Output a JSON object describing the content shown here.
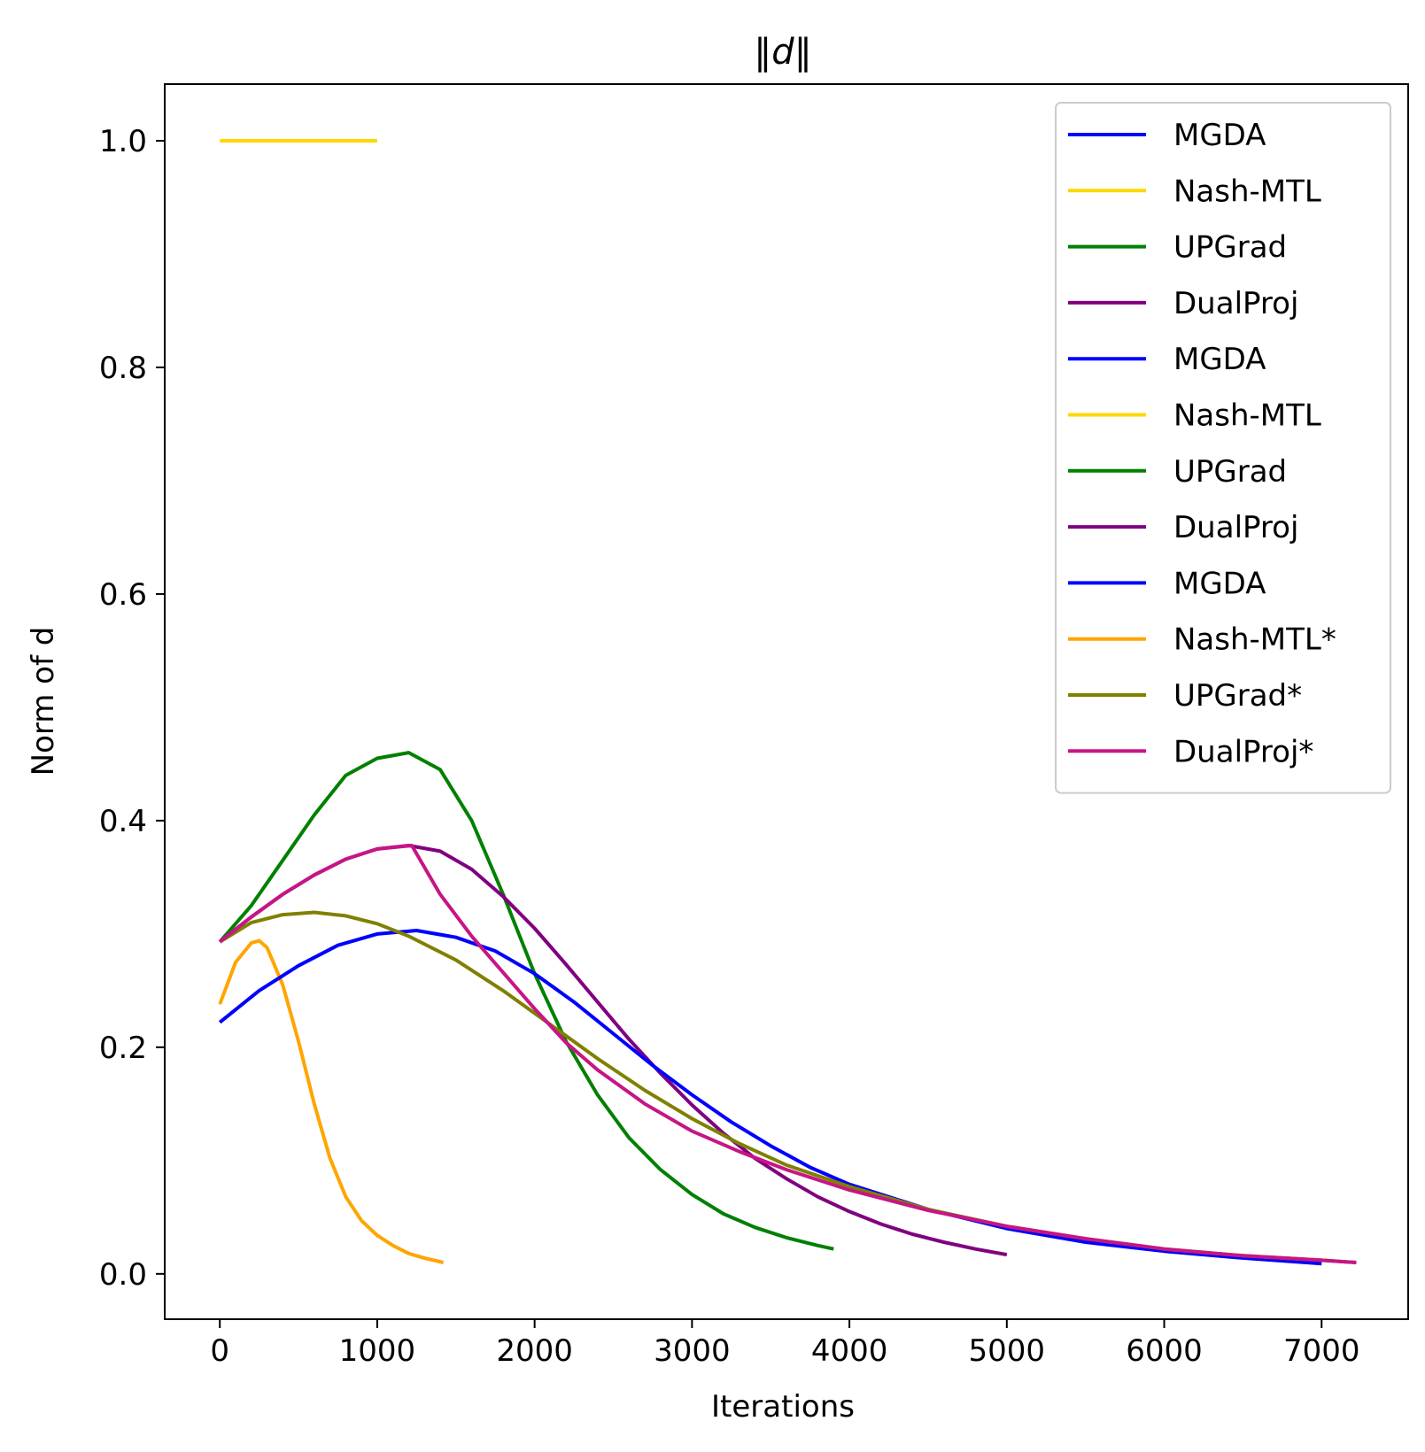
{
  "chart_data": {
    "type": "line",
    "title": "‖d‖",
    "xlabel": "Iterations",
    "ylabel": "Norm of d",
    "xlim": [
      -350,
      7550
    ],
    "ylim": [
      -0.04,
      1.05
    ],
    "xticks": [
      0,
      1000,
      2000,
      3000,
      4000,
      5000,
      6000,
      7000
    ],
    "yticks": [
      0.0,
      0.2,
      0.4,
      0.6,
      0.8,
      1.0
    ],
    "xtick_labels": [
      "0",
      "1000",
      "2000",
      "3000",
      "4000",
      "5000",
      "6000",
      "7000"
    ],
    "ytick_labels": [
      "0.0",
      "0.2",
      "0.4",
      "0.6",
      "0.8",
      "1.0"
    ],
    "grid": false,
    "legend_position": "top-right",
    "legend": [
      {
        "label": "MGDA",
        "color": "#0000ff"
      },
      {
        "label": "Nash-MTL",
        "color": "#ffd700"
      },
      {
        "label": "UPGrad",
        "color": "#008000"
      },
      {
        "label": "DualProj",
        "color": "#800080"
      },
      {
        "label": "MGDA",
        "color": "#0000ff"
      },
      {
        "label": "Nash-MTL",
        "color": "#ffd700"
      },
      {
        "label": "UPGrad",
        "color": "#008000"
      },
      {
        "label": "DualProj",
        "color": "#800080"
      },
      {
        "label": "MGDA",
        "color": "#0000ff"
      },
      {
        "label": "Nash-MTL*",
        "color": "#ffa500"
      },
      {
        "label": "UPGrad*",
        "color": "#808000"
      },
      {
        "label": "DualProj*",
        "color": "#c71585"
      }
    ],
    "series": [
      {
        "name": "Nash-MTL",
        "color": "#ffd700",
        "x": [
          0,
          1000
        ],
        "y": [
          1.0,
          1.0
        ]
      },
      {
        "name": "Nash-MTL*",
        "color": "#ffa500",
        "x": [
          0,
          100,
          200,
          250,
          300,
          400,
          500,
          600,
          700,
          800,
          900,
          1000,
          1100,
          1200,
          1300,
          1420
        ],
        "y": [
          0.238,
          0.275,
          0.292,
          0.294,
          0.288,
          0.255,
          0.205,
          0.15,
          0.102,
          0.068,
          0.047,
          0.034,
          0.025,
          0.018,
          0.014,
          0.01
        ]
      },
      {
        "name": "UPGrad",
        "color": "#008000",
        "x": [
          0,
          200,
          400,
          600,
          800,
          1000,
          1200,
          1400,
          1600,
          1800,
          2000,
          2200,
          2400,
          2600,
          2800,
          3000,
          3200,
          3400,
          3600,
          3800,
          3900
        ],
        "y": [
          0.293,
          0.325,
          0.365,
          0.405,
          0.44,
          0.455,
          0.46,
          0.445,
          0.4,
          0.335,
          0.265,
          0.205,
          0.158,
          0.12,
          0.092,
          0.07,
          0.053,
          0.041,
          0.032,
          0.025,
          0.022
        ]
      },
      {
        "name": "DualProj",
        "color": "#800080",
        "x": [
          0,
          200,
          400,
          600,
          800,
          1000,
          1200,
          1400,
          1600,
          1800,
          2000,
          2200,
          2400,
          2600,
          2800,
          3000,
          3200,
          3400,
          3600,
          3800,
          4000,
          4200,
          4400,
          4600,
          4800,
          5000
        ],
        "y": [
          0.293,
          0.315,
          0.335,
          0.352,
          0.366,
          0.375,
          0.378,
          0.373,
          0.357,
          0.333,
          0.305,
          0.273,
          0.24,
          0.207,
          0.177,
          0.149,
          0.124,
          0.102,
          0.084,
          0.068,
          0.055,
          0.044,
          0.035,
          0.028,
          0.022,
          0.017
        ]
      },
      {
        "name": "MGDA",
        "color": "#0000ff",
        "x": [
          0,
          250,
          500,
          750,
          1000,
          1250,
          1500,
          1750,
          2000,
          2250,
          2500,
          2750,
          3000,
          3250,
          3500,
          3750,
          4000,
          4500,
          5000,
          5500,
          6000,
          6500,
          7000
        ],
        "y": [
          0.222,
          0.25,
          0.272,
          0.29,
          0.3,
          0.303,
          0.297,
          0.285,
          0.265,
          0.24,
          0.212,
          0.184,
          0.158,
          0.134,
          0.113,
          0.094,
          0.079,
          0.057,
          0.04,
          0.028,
          0.02,
          0.014,
          0.009
        ]
      },
      {
        "name": "UPGrad*",
        "color": "#808000",
        "x": [
          0,
          200,
          400,
          600,
          800,
          1000,
          1200,
          1500,
          1800,
          2100,
          2400,
          2700,
          3000,
          3300,
          3600,
          4000,
          4500,
          5000,
          5500,
          6000,
          6500,
          7000,
          7220
        ],
        "y": [
          0.293,
          0.31,
          0.317,
          0.319,
          0.316,
          0.309,
          0.298,
          0.277,
          0.25,
          0.22,
          0.19,
          0.162,
          0.137,
          0.115,
          0.096,
          0.077,
          0.057,
          0.042,
          0.031,
          0.022,
          0.016,
          0.012,
          0.01
        ]
      },
      {
        "name": "DualProj*",
        "color": "#c71585",
        "x": [
          0,
          200,
          400,
          600,
          800,
          1000,
          1220,
          1400,
          1600,
          1800,
          2000,
          2200,
          2400,
          2700,
          3000,
          3300,
          3600,
          4000,
          4500,
          5000,
          5500,
          6000,
          6500,
          7000,
          7220
        ],
        "y": [
          0.293,
          0.315,
          0.335,
          0.352,
          0.366,
          0.375,
          0.378,
          0.335,
          0.298,
          0.266,
          0.234,
          0.204,
          0.18,
          0.15,
          0.126,
          0.108,
          0.092,
          0.074,
          0.056,
          0.042,
          0.031,
          0.022,
          0.016,
          0.012,
          0.01
        ]
      }
    ]
  }
}
